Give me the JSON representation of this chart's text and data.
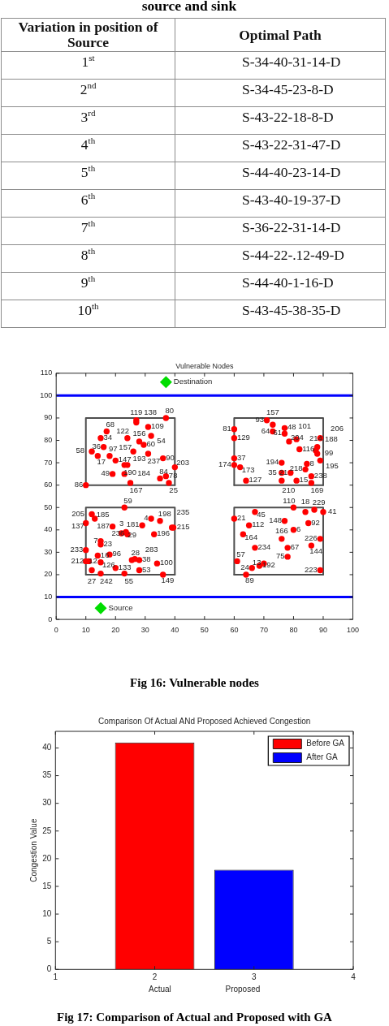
{
  "chart_data": [
    {
      "type": "other",
      "title": "source and sink",
      "annotations": [
        "Variation in position of Source",
        "Optimal Path",
        "1$^{st}$",
        "S-34-40-31-14-D",
        "2$^{nd}$",
        "S-34-45-23-8-D",
        "3$^{rd}$",
        "S-43-22-18-8-D",
        "4$^{th}$",
        "S-43-22-31-47-D",
        "5$^{th}$",
        "S-44-40-23-14-D",
        "6$^{th}$",
        "S-43-40-19-37-D",
        "7$^{th}$",
        "S-36-22-31-14-D",
        "8$^{th}$",
        "S-44-22-.12-49-D",
        "9$^{th}$",
        "S-44-40-1-16-D",
        "10$^{th}$",
        "S-43-45-38-35-D"
      ]
    },
    {
      "type": "scatter",
      "title": "Vulnerable Nodes",
      "xlim": [
        0,
        100
      ],
      "xticks": [
        0,
        10,
        20,
        30,
        40,
        50,
        60,
        70,
        80,
        90,
        100
      ],
      "ylim": [
        0,
        110
      ],
      "yticks": [
        0,
        10,
        20,
        30,
        40,
        50,
        60,
        70,
        80,
        90,
        100,
        110
      ],
      "marker": "circle",
      "ref_lines": [
        {
          "axis": "y",
          "value": 100,
          "color": "#0000ff"
        },
        {
          "axis": "y",
          "value": 10,
          "color": "#0000ff"
        }
      ],
      "series": [
        {
          "type": "scatter",
          "color": "#ff0000",
          "x": [
            10,
            17,
            15,
            16,
            12,
            14,
            18,
            20,
            23,
            24,
            19,
            23,
            25,
            38,
            35,
            37,
            40,
            36,
            31,
            26,
            24,
            32,
            31,
            27,
            27,
            37,
            28,
            29.5,
            71,
            73,
            73,
            77,
            77,
            78.5,
            81,
            82,
            89,
            88,
            87.5,
            88,
            89,
            60,
            60,
            60,
            60,
            62,
            64,
            76,
            76,
            79,
            76,
            81,
            84.5,
            84,
            86,
            86,
            23,
            12,
            13,
            10,
            19,
            22,
            23.5,
            24,
            29,
            32,
            35,
            39,
            39.5,
            33,
            15,
            15,
            10,
            14,
            18,
            10,
            11,
            15,
            12,
            15,
            20,
            23,
            28,
            25.5,
            26.5,
            28,
            34,
            36,
            60,
            67,
            65,
            63,
            67,
            61,
            66,
            68.5,
            70,
            64,
            80,
            84,
            87,
            90,
            77,
            85,
            80,
            76,
            78,
            78,
            89,
            86,
            89
          ],
          "values": [
            60,
            84,
            81,
            77,
            75,
            73,
            73,
            71,
            69,
            69,
            65,
            65,
            61,
            61,
            63,
            64,
            68,
            72,
            74,
            75,
            81,
            82,
            86,
            89,
            88,
            90,
            79.5,
            78,
            89,
            87,
            84,
            85.5,
            83,
            79.5,
            80.5,
            76,
            81,
            77,
            75.5,
            74,
            71,
            85,
            81,
            72,
            69,
            68,
            62,
            70,
            65.5,
            65.5,
            62,
            62,
            69.5,
            67,
            64,
            61,
            50,
            47,
            45,
            43,
            41.5,
            38.5,
            39,
            38,
            42,
            45,
            44,
            41,
            41,
            38,
            35,
            33.5,
            31,
            28.5,
            29,
            26,
            26,
            25.5,
            22,
            20.5,
            23,
            20.5,
            22,
            26.5,
            27,
            26.5,
            25,
            20,
            45,
            48,
            42,
            38,
            32,
            26,
            23,
            24,
            25,
            20,
            50,
            48,
            49,
            48,
            44,
            43,
            40,
            36,
            32,
            28,
            36,
            33,
            22
          ]
        },
        {
          "name": "Destination",
          "type": "scatter",
          "marker": "diamond",
          "color": "#00dd00",
          "x": [
            37
          ],
          "values": [
            106
          ]
        },
        {
          "name": "Source",
          "type": "scatter",
          "marker": "diamond",
          "color": "#00dd00",
          "x": [
            15
          ],
          "values": [
            5
          ]
        },
        {
          "type": "line",
          "marker": "none",
          "color": "#4d4d4d",
          "x": [
            10,
            10,
            40,
            40
          ],
          "values": [
            60,
            90,
            90,
            60
          ]
        },
        {
          "type": "line",
          "marker": "none",
          "color": "#4d4d4d",
          "x": [
            10,
            40
          ],
          "values": [
            60,
            60
          ]
        },
        {
          "type": "line",
          "marker": "none",
          "color": "#4d4d4d",
          "x": [
            60,
            60,
            90,
            90
          ],
          "values": [
            60,
            90,
            90,
            60
          ]
        },
        {
          "type": "line",
          "marker": "none",
          "color": "#4d4d4d",
          "x": [
            60,
            90
          ],
          "values": [
            60,
            60
          ]
        },
        {
          "type": "line",
          "marker": "none",
          "color": "#4d4d4d",
          "x": [
            10,
            10,
            40,
            40
          ],
          "values": [
            20,
            50,
            50,
            20
          ]
        },
        {
          "type": "line",
          "marker": "none",
          "color": "#4d4d4d",
          "x": [
            10,
            40
          ],
          "values": [
            20,
            20
          ]
        },
        {
          "type": "line",
          "marker": "none",
          "color": "#4d4d4d",
          "x": [
            60,
            60,
            90,
            90
          ],
          "values": [
            20,
            50,
            50,
            20
          ]
        },
        {
          "type": "line",
          "marker": "none",
          "color": "#4d4d4d",
          "x": [
            60,
            90
          ],
          "values": [
            20,
            20
          ]
        }
      ],
      "annotations": [
        "Fig 16: Vulnerable nodes",
        {
          "text": "86",
          "x": 10,
          "y": 60
        },
        {
          "text": "68",
          "x": 17,
          "y": 84
        },
        {
          "text": "34",
          "x": 15,
          "y": 81
        },
        {
          "text": "36",
          "x": 16,
          "y": 77
        },
        {
          "text": "58",
          "x": 12,
          "y": 75
        },
        {
          "text": "17",
          "x": 14,
          "y": 73
        },
        {
          "text": "97",
          "x": 18,
          "y": 73
        },
        {
          "text": "147",
          "x": 20,
          "y": 71
        },
        {
          "text": "190",
          "x": 23,
          "y": 69
        },
        {
          "text": "193",
          "x": 24,
          "y": 69
        },
        {
          "text": "49",
          "x": 19,
          "y": 65
        },
        {
          "text": "184",
          "x": 23,
          "y": 65
        },
        {
          "text": "167",
          "x": 25,
          "y": 61
        },
        {
          "text": "25",
          "x": 38,
          "y": 61
        },
        {
          "text": "84",
          "x": 35,
          "y": 63
        },
        {
          "text": "78",
          "x": 37,
          "y": 64
        },
        {
          "text": "203",
          "x": 40,
          "y": 68
        },
        {
          "text": "90",
          "x": 36,
          "y": 72
        },
        {
          "text": "237",
          "x": 31,
          "y": 74
        },
        {
          "text": "157",
          "x": 26,
          "y": 75
        },
        {
          "text": "122",
          "x": 24,
          "y": 81
        },
        {
          "text": "54",
          "x": 32,
          "y": 82
        },
        {
          "text": "109",
          "x": 31,
          "y": 86
        },
        {
          "text": "138",
          "x": 27,
          "y": 89
        },
        {
          "text": "119",
          "x": 27,
          "y": 88
        },
        {
          "text": "80",
          "x": 37,
          "y": 90
        },
        {
          "text": "156",
          "x": 28,
          "y": 79.5
        },
        {
          "text": "60",
          "x": 29.5,
          "y": 78
        },
        {
          "text": "93",
          "x": 71,
          "y": 89
        },
        {
          "text": "157",
          "x": 73,
          "y": 87
        },
        {
          "text": "64",
          "x": 73,
          "y": 84
        },
        {
          "text": "48",
          "x": 77,
          "y": 85.5
        },
        {
          "text": "61",
          "x": 77,
          "y": 83
        },
        {
          "text": "204",
          "x": 78.5,
          "y": 79.5
        },
        {
          "text": "101",
          "x": 81,
          "y": 80.5
        },
        {
          "text": "116",
          "x": 82,
          "y": 76
        },
        {
          "text": "206",
          "x": 89,
          "y": 81
        },
        {
          "text": "188",
          "x": 88,
          "y": 77
        },
        {
          "text": "214",
          "x": 87.5,
          "y": 75.5
        },
        {
          "text": "99",
          "x": 88,
          "y": 74
        },
        {
          "text": "195",
          "x": 89,
          "y": 71
        },
        {
          "text": "81",
          "x": 60,
          "y": 85
        },
        {
          "text": "129",
          "x": 60,
          "y": 81
        },
        {
          "text": "37",
          "x": 60,
          "y": 72
        },
        {
          "text": "174",
          "x": 60,
          "y": 69
        },
        {
          "text": "173",
          "x": 62,
          "y": 68
        },
        {
          "text": "127",
          "x": 64,
          "y": 62
        },
        {
          "text": "194",
          "x": 76,
          "y": 70
        },
        {
          "text": "35",
          "x": 76,
          "y": 65.5
        },
        {
          "text": "21",
          "x": 79,
          "y": 65.5
        },
        {
          "text": "210",
          "x": 76,
          "y": 62
        },
        {
          "text": "15",
          "x": 81,
          "y": 62
        },
        {
          "text": "8",
          "x": 84.5,
          "y": 69.5
        },
        {
          "text": "218",
          "x": 84,
          "y": 67
        },
        {
          "text": "238",
          "x": 86,
          "y": 64
        },
        {
          "text": "169",
          "x": 86,
          "y": 61
        },
        {
          "text": "59",
          "x": 23,
          "y": 50
        },
        {
          "text": "205",
          "x": 12,
          "y": 47
        },
        {
          "text": "185",
          "x": 13,
          "y": 45
        },
        {
          "text": "137",
          "x": 10,
          "y": 43
        },
        {
          "text": "187",
          "x": 19,
          "y": 41.5
        },
        {
          "text": "3",
          "x": 22,
          "y": 38.5
        },
        {
          "text": "29",
          "x": 23.5,
          "y": 39
        },
        {
          "text": "236",
          "x": 24,
          "y": 38
        },
        {
          "text": "181",
          "x": 29,
          "y": 42
        },
        {
          "text": "4",
          "x": 32,
          "y": 45
        },
        {
          "text": "198",
          "x": 35,
          "y": 44
        },
        {
          "text": "215",
          "x": 39,
          "y": 41
        },
        {
          "text": "235",
          "x": 39.5,
          "y": 41
        },
        {
          "text": "196",
          "x": 33,
          "y": 38
        },
        {
          "text": "7",
          "x": 15,
          "y": 35
        },
        {
          "text": "23",
          "x": 15,
          "y": 33.5
        },
        {
          "text": "233",
          "x": 10,
          "y": 31
        },
        {
          "text": "16",
          "x": 14,
          "y": 28.5
        },
        {
          "text": "96",
          "x": 18,
          "y": 29
        },
        {
          "text": "12",
          "x": 10,
          "y": 26
        },
        {
          "text": "212",
          "x": 11,
          "y": 26
        },
        {
          "text": "126",
          "x": 15,
          "y": 25.5
        },
        {
          "text": "27",
          "x": 12,
          "y": 22
        },
        {
          "text": "242",
          "x": 15,
          "y": 20.5
        },
        {
          "text": "133",
          "x": 20,
          "y": 23
        },
        {
          "text": "55",
          "x": 23,
          "y": 20.5
        },
        {
          "text": "53",
          "x": 28,
          "y": 22
        },
        {
          "text": "28",
          "x": 25.5,
          "y": 26.5
        },
        {
          "text": "283",
          "x": 26.5,
          "y": 27
        },
        {
          "text": "38",
          "x": 28,
          "y": 26.5
        },
        {
          "text": "100",
          "x": 34,
          "y": 25
        },
        {
          "text": "149",
          "x": 36,
          "y": 20
        },
        {
          "text": "21",
          "x": 60,
          "y": 45
        },
        {
          "text": "45",
          "x": 67,
          "y": 48
        },
        {
          "text": "112",
          "x": 65,
          "y": 42
        },
        {
          "text": "164",
          "x": 63,
          "y": 38
        },
        {
          "text": "234",
          "x": 67,
          "y": 32
        },
        {
          "text": "57",
          "x": 61,
          "y": 26
        },
        {
          "text": "24",
          "x": 66,
          "y": 23
        },
        {
          "text": "192",
          "x": 68.5,
          "y": 24
        },
        {
          "text": "13",
          "x": 70,
          "y": 25
        },
        {
          "text": "89",
          "x": 64,
          "y": 20
        },
        {
          "text": "110",
          "x": 80,
          "y": 50
        },
        {
          "text": "18",
          "x": 84,
          "y": 48
        },
        {
          "text": "229",
          "x": 87,
          "y": 49
        },
        {
          "text": "41",
          "x": 90,
          "y": 48
        },
        {
          "text": "148",
          "x": 77,
          "y": 44
        },
        {
          "text": "92",
          "x": 85,
          "y": 43
        },
        {
          "text": "6",
          "x": 80,
          "y": 40
        },
        {
          "text": "166",
          "x": 76,
          "y": 36
        },
        {
          "text": "67",
          "x": 78,
          "y": 32
        },
        {
          "text": "75",
          "x": 78,
          "y": 28
        },
        {
          "text": "226",
          "x": 89,
          "y": 36
        },
        {
          "text": "144",
          "x": 86,
          "y": 33
        },
        {
          "text": "223",
          "x": 89,
          "y": 22
        }
      ]
    },
    {
      "type": "bar",
      "title": "Comparison Of Actual ANd Proposed Achieved Congestion",
      "xlabel": "Actual                        Proposed",
      "ylabel": "Congestion Value",
      "xlim": [
        1,
        4
      ],
      "xticks": [
        1,
        2,
        3,
        4
      ],
      "ylim": [
        0,
        43
      ],
      "yticks": [
        0,
        5,
        10,
        15,
        20,
        25,
        30,
        35,
        40
      ],
      "legend": "top right",
      "series": [
        {
          "name": "Before GA",
          "color": "#ff0000",
          "x": [
            2
          ],
          "values": [
            41
          ]
        },
        {
          "name": "After GA",
          "color": "#0000ff",
          "x": [
            3
          ],
          "values": [
            18
          ]
        }
      ],
      "annotations": [
        "Fig 17: Comparison of Actual and Proposed with GA"
      ]
    }
  ]
}
